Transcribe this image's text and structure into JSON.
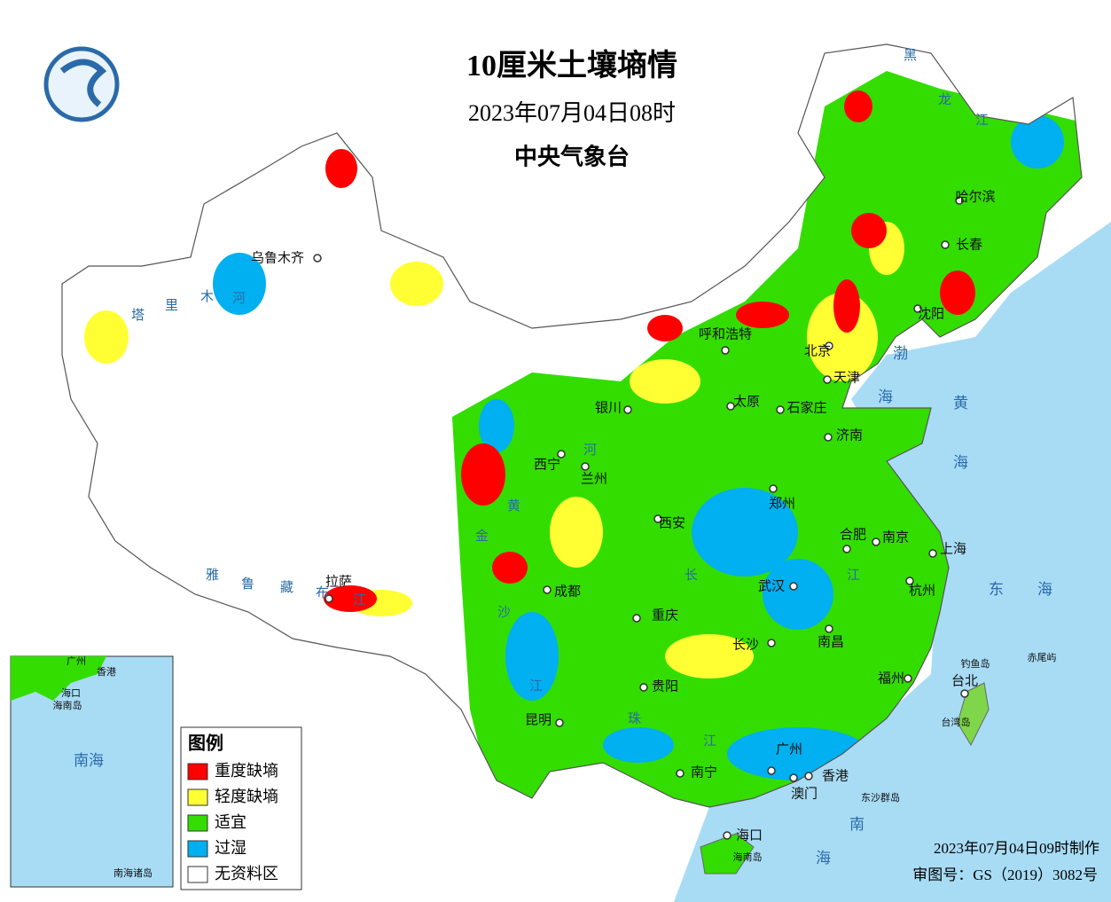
{
  "header": {
    "title": "10厘米土壤墒情",
    "datetime": "2023年07月04日08时",
    "agency": "中央气象台"
  },
  "legend": {
    "title": "图例",
    "items": [
      {
        "label": "重度缺墒",
        "color": "#ff0000"
      },
      {
        "label": "轻度缺墒",
        "color": "#ffff33"
      },
      {
        "label": "适宜",
        "color": "#33dd00"
      },
      {
        "label": "过湿",
        "color": "#00b0f0"
      },
      {
        "label": "无资料区",
        "color": "#ffffff"
      }
    ]
  },
  "cities": [
    "哈尔滨",
    "长春",
    "沈阳",
    "呼和浩特",
    "北京",
    "天津",
    "银川",
    "太原",
    "石家庄",
    "济南",
    "西宁",
    "兰州",
    "郑州",
    "西安",
    "合肥",
    "南京",
    "上海",
    "拉萨",
    "成都",
    "武汉",
    "杭州",
    "重庆",
    "长沙",
    "南昌",
    "贵阳",
    "福州",
    "台北",
    "昆明",
    "南宁",
    "广州",
    "香港",
    "澳门",
    "海口",
    "乌鲁木齐"
  ],
  "islands": [
    "钓鱼岛",
    "赤尾屿",
    "台湾岛",
    "东沙群岛",
    "海南岛"
  ],
  "seas": [
    "渤海",
    "黄海",
    "东海",
    "南海"
  ],
  "rivers": [
    "黑龙江",
    "塔里木河",
    "雅鲁藏布江",
    "黄河",
    "长江",
    "金沙江",
    "珠江"
  ],
  "inset": {
    "labels": [
      "广州",
      "香港",
      "海口",
      "海南岛",
      "南海",
      "南海诸岛"
    ]
  },
  "footer": {
    "made": "2023年07月04日09时制作",
    "approval": "审图号：GS（2019）3082号"
  }
}
